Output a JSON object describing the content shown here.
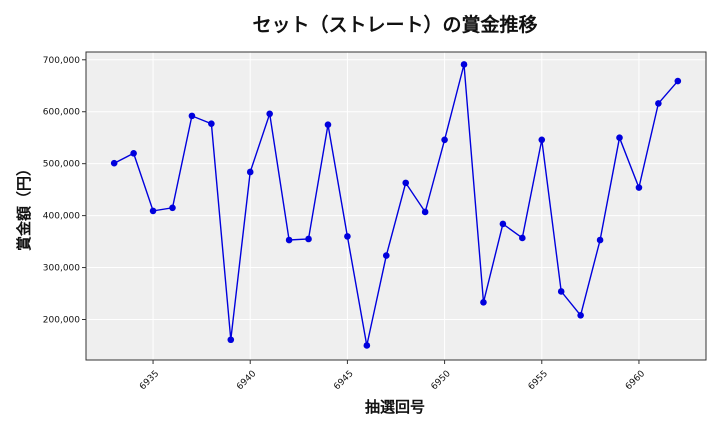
{
  "chart_data": {
    "type": "line",
    "title": "セット（ストレート）の賞金推移",
    "xlabel": "抽選回号",
    "ylabel": "賞金額（円）",
    "x": [
      6933,
      6934,
      6935,
      6936,
      6937,
      6938,
      6939,
      6940,
      6941,
      6942,
      6943,
      6944,
      6945,
      6946,
      6947,
      6948,
      6949,
      6950,
      6951,
      6952,
      6953,
      6954,
      6955,
      6956,
      6957,
      6958,
      6959,
      6960,
      6961,
      6962
    ],
    "series": [
      {
        "values": [
          501000,
          520000,
          409000,
          415000,
          592000,
          577000,
          161000,
          484000,
          596000,
          353000,
          355000,
          575000,
          360000,
          150000,
          323000,
          463000,
          407000,
          546000,
          691000,
          233000,
          384000,
          357000,
          546000,
          254000,
          208000,
          353000,
          550000,
          454000,
          616000,
          659000
        ]
      }
    ],
    "xlim": [
      6931.55,
      6963.45
    ],
    "ylim": [
      122000,
      715000
    ],
    "xticks": [
      "6935",
      "6940",
      "6945",
      "6950",
      "6955",
      "6960"
    ],
    "yticks": [
      "200,000",
      "300,000",
      "400,000",
      "500,000",
      "600,000",
      "700,000"
    ],
    "grid": true,
    "colors": {
      "line": "#0000dd",
      "marker": "#0000dd",
      "plot_bg": "#efefef",
      "grid": "#ffffff"
    }
  }
}
